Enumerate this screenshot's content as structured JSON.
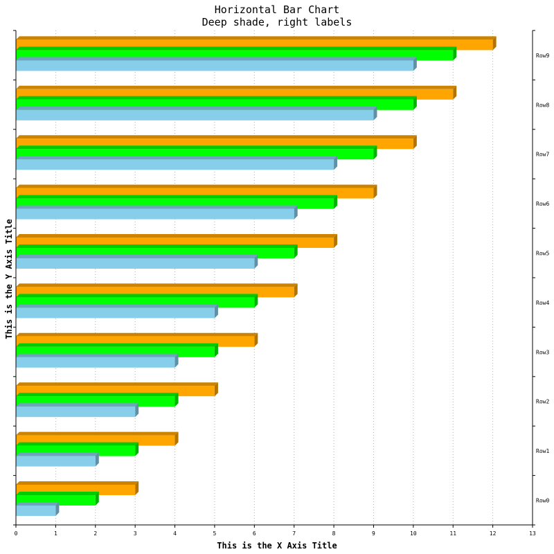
{
  "chart_data": {
    "type": "bar",
    "orientation": "horizontal",
    "title": "Horizontal Bar Chart",
    "subtitle": "Deep shade, right labels",
    "xlabel": "This is the X Axis Title",
    "ylabel": "This is the Y Axis Title",
    "xlim": [
      0,
      13
    ],
    "x_ticks": [
      "0",
      "1",
      "2",
      "3",
      "4",
      "5",
      "6",
      "7",
      "8",
      "9",
      "10",
      "11",
      "12",
      "13"
    ],
    "grid": true,
    "category_label_position": "right",
    "categories": [
      "Row0",
      "Row1",
      "Row2",
      "Row3",
      "Row4",
      "Row5",
      "Row6",
      "Row7",
      "Row8",
      "Row9"
    ],
    "series": [
      {
        "color": "#87ceeb",
        "values": [
          1,
          2,
          3,
          4,
          5,
          6,
          7,
          8,
          9,
          10
        ]
      },
      {
        "color": "#00ff00",
        "values": [
          2,
          3,
          4,
          5,
          6,
          7,
          8,
          9,
          10,
          11
        ]
      },
      {
        "color": "#ffa500",
        "values": [
          3,
          4,
          5,
          6,
          7,
          8,
          9,
          10,
          11,
          12
        ]
      }
    ]
  }
}
